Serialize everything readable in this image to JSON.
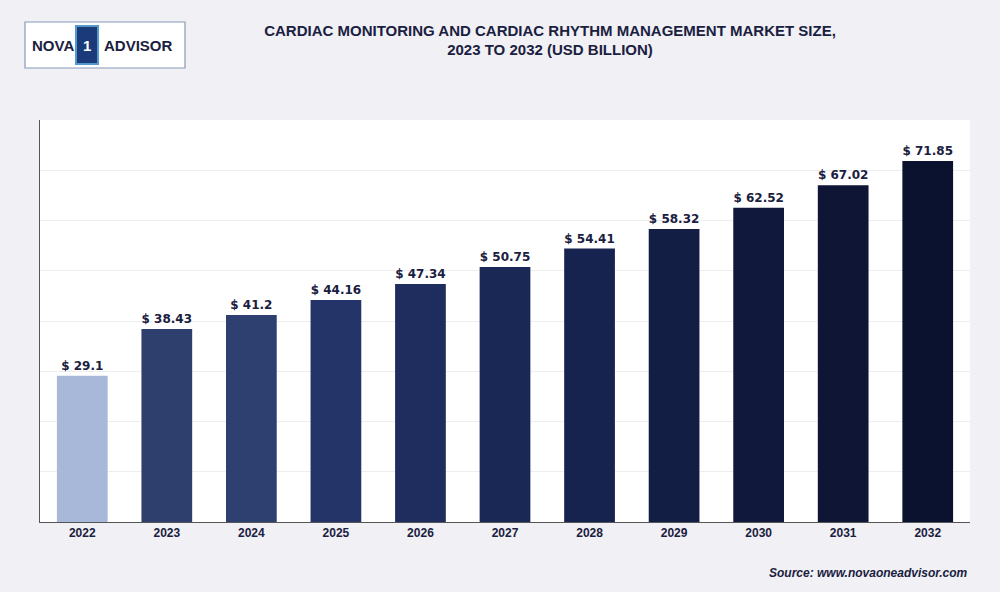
{
  "chart_data": {
    "type": "bar",
    "title": "CARDIAC MONITORING AND CARDIAC RHYTHM MANAGEMENT MARKET SIZE,\n2023 TO 2032 (USD BILLION)",
    "categories": [
      "2022",
      "2023",
      "2024",
      "2025",
      "2026",
      "2027",
      "2028",
      "2029",
      "2030",
      "2031",
      "2032"
    ],
    "values": [
      29.1,
      38.43,
      41.2,
      44.16,
      47.34,
      50.75,
      54.41,
      58.32,
      62.52,
      67.02,
      71.85
    ],
    "value_labels": [
      "$ 29.1",
      "$ 38.43",
      "$ 41.2",
      "$ 44.16",
      "$ 47.34",
      "$ 50.75",
      "$ 54.41",
      "$ 58.32",
      "$ 62.52",
      "$ 67.02",
      "$ 71.85"
    ],
    "data_labels": true,
    "colors": [
      "#a8b8d8",
      "#2e3f6e",
      "#2e4070",
      "#253468",
      "#1e2d5e",
      "#1a2856",
      "#16234e",
      "#131e45",
      "#10193c",
      "#0e1535",
      "#0b1230"
    ],
    "ylim": [
      0,
      80
    ],
    "yticks": [
      0,
      10,
      20,
      30,
      40,
      50,
      60,
      70,
      80
    ],
    "grid": true,
    "tick_labels": "x",
    "annotations": [
      "Source: www.novaoneadvisor.com",
      "NOVA",
      "1",
      "ADVISOR"
    ]
  }
}
